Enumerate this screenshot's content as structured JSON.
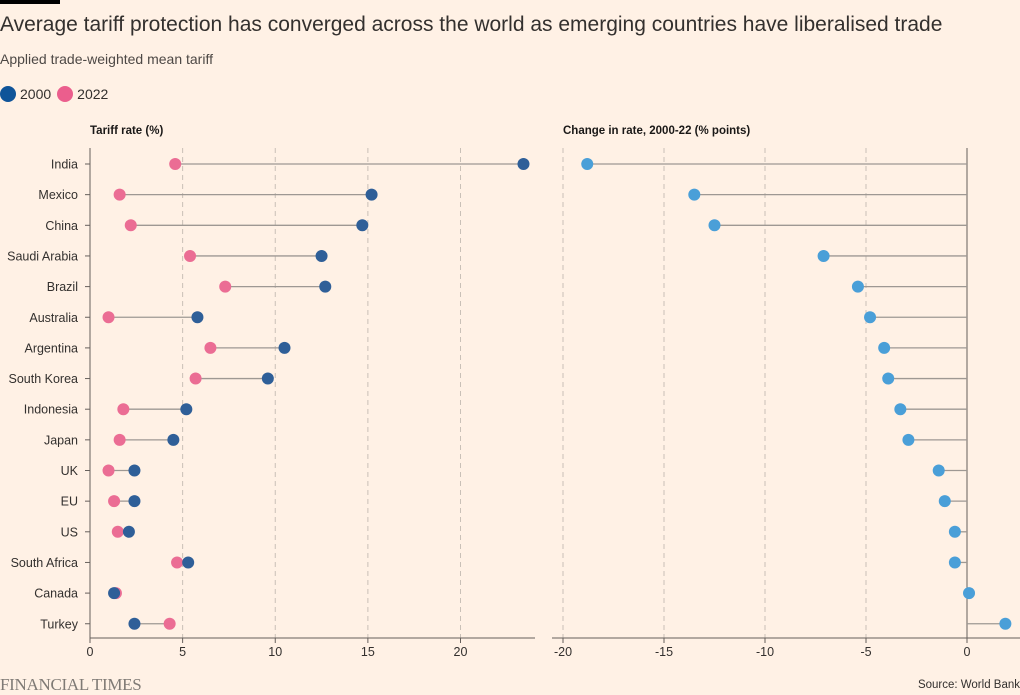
{
  "header": {
    "title": "Average tariff protection has converged across the world as emerging countries have liberalised trade",
    "subtitle": "Applied trade-weighted mean tariff"
  },
  "legend": [
    {
      "label": "2000",
      "color": "#0f5499"
    },
    {
      "label": "2022",
      "color": "#eb5e8d"
    }
  ],
  "colors": {
    "y2000": "#2f5f98",
    "y2022": "#eb6d94",
    "change": "#4a9fd8",
    "connector": "#9e9893",
    "axis": "#66605c",
    "grid": "#c9c0b7"
  },
  "chart_data": [
    {
      "type": "dumbbell",
      "title": "Tariff rate (%)",
      "categories": [
        "India",
        "Mexico",
        "China",
        "Saudi Arabia",
        "Brazil",
        "Australia",
        "Argentina",
        "South Korea",
        "Indonesia",
        "Japan",
        "UK",
        "EU",
        "US",
        "South Africa",
        "Canada",
        "Turkey"
      ],
      "series": [
        {
          "name": "2000",
          "values": [
            23.4,
            15.2,
            14.7,
            12.5,
            12.7,
            5.8,
            10.5,
            9.6,
            5.2,
            4.5,
            2.4,
            2.4,
            2.1,
            5.3,
            1.3,
            2.4
          ]
        },
        {
          "name": "2022",
          "values": [
            4.6,
            1.6,
            2.2,
            5.4,
            7.3,
            1.0,
            6.5,
            5.7,
            1.8,
            1.6,
            1.0,
            1.3,
            1.5,
            4.7,
            1.4,
            4.3
          ]
        }
      ],
      "xlim": [
        0,
        24
      ],
      "xticks": [
        0,
        5,
        10,
        15,
        20
      ],
      "grid": true
    },
    {
      "type": "lollipop",
      "title": "Change in rate, 2000-22 (% points)",
      "categories": [
        "India",
        "Mexico",
        "China",
        "Saudi Arabia",
        "Brazil",
        "Australia",
        "Argentina",
        "South Korea",
        "Indonesia",
        "Japan",
        "UK",
        "EU",
        "US",
        "South Africa",
        "Canada",
        "Turkey"
      ],
      "values": [
        -18.8,
        -13.5,
        -12.5,
        -7.1,
        -5.4,
        -4.8,
        -4.1,
        -3.9,
        -3.3,
        -2.9,
        -1.4,
        -1.1,
        -0.6,
        -0.6,
        0.1,
        1.9
      ],
      "xlim": [
        -20.5,
        2
      ],
      "xticks": [
        -20,
        -15,
        -10,
        -5,
        0
      ],
      "grid": true
    }
  ],
  "footer": {
    "logo": "FINANCIAL TIMES",
    "source": "Source: World Bank"
  }
}
